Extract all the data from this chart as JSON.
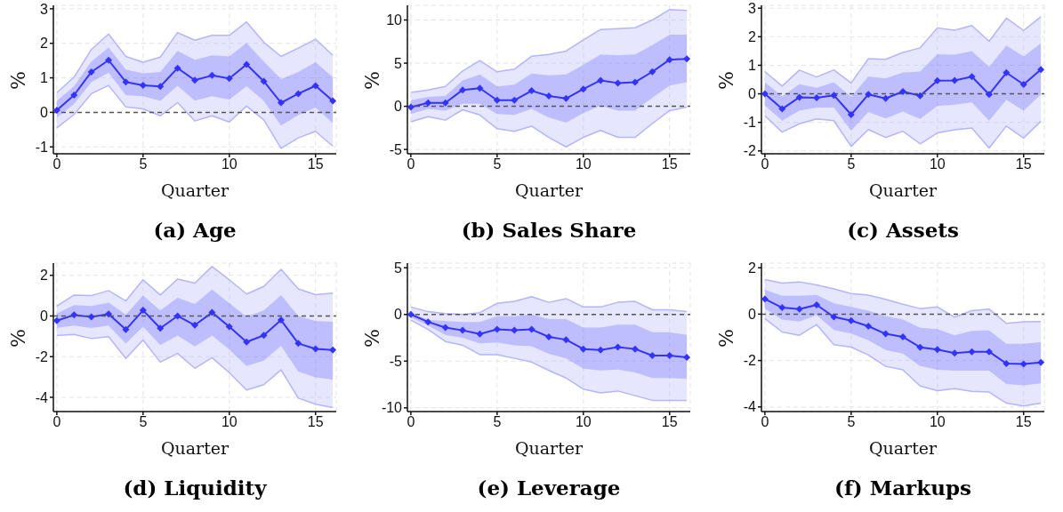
{
  "chart_data": [
    {
      "type": "line",
      "title": "(a) Age",
      "xlabel": "Quarter",
      "ylabel": "%",
      "x": [
        0,
        1,
        2,
        3,
        4,
        5,
        6,
        7,
        8,
        9,
        10,
        11,
        12,
        13,
        14,
        15,
        16
      ],
      "xlim": [
        -0.2,
        16.2
      ],
      "xticks": [
        0,
        5,
        10,
        15
      ],
      "ylim": [
        -1.2,
        3.1
      ],
      "yticks": [
        -1,
        0,
        1,
        2,
        3
      ],
      "grid": true,
      "marker": "diamond",
      "ref_lines": [
        {
          "axis": "y",
          "value": 0,
          "color": "#555555",
          "line_style": "dashed"
        }
      ],
      "series": [
        {
          "color": "#3333ff",
          "values": [
            0.06,
            0.5,
            1.17,
            1.51,
            0.88,
            0.78,
            0.75,
            1.28,
            0.93,
            1.07,
            0.98,
            1.39,
            0.9,
            0.28,
            0.54,
            0.77,
            0.33
          ],
          "lower": [
            -0.16,
            0.24,
            0.87,
            1.15,
            0.5,
            0.47,
            0.33,
            0.77,
            0.34,
            0.47,
            0.37,
            0.76,
            0.33,
            -0.38,
            -0.08,
            0.14,
            -0.31
          ],
          "upper": [
            0.33,
            0.76,
            1.47,
            1.88,
            1.24,
            1.13,
            1.17,
            1.78,
            1.52,
            1.65,
            1.62,
            2.01,
            1.47,
            0.96,
            1.17,
            1.45,
            1.02
          ]
        },
        {
          "type": "line",
          "color": "#b4b4ff",
          "marker": "none",
          "values": [
            0.57,
            1.02,
            1.82,
            2.27,
            1.62,
            1.45,
            1.6,
            2.31,
            2.09,
            2.23,
            2.23,
            2.62,
            2.03,
            1.62,
            1.86,
            2.12,
            1.65
          ],
          "upper": [
            0.57,
            1.02,
            1.82,
            2.27,
            1.62,
            1.45,
            1.6,
            2.31,
            2.09,
            2.23,
            2.23,
            2.62,
            2.03,
            1.62,
            1.86,
            2.12,
            1.65
          ],
          "lower": [
            -0.45,
            -0.06,
            0.54,
            0.78,
            0.16,
            0.1,
            -0.1,
            0.28,
            -0.25,
            -0.1,
            -0.28,
            0.18,
            -0.22,
            -1.04,
            -0.74,
            -0.55,
            -0.98
          ]
        },
        {
          "type": "line",
          "color": "#b4b4ff",
          "marker": "none",
          "values": [
            -0.45,
            -0.06,
            0.54,
            0.78,
            0.16,
            0.1,
            -0.1,
            0.28,
            -0.25,
            -0.1,
            -0.28,
            0.18,
            -0.22,
            -1.04,
            -0.74,
            -0.55,
            -0.98
          ]
        }
      ]
    },
    {
      "type": "line",
      "title": "(b) Sales Share",
      "xlabel": "Quarter",
      "ylabel": "%",
      "x": [
        0,
        1,
        2,
        3,
        4,
        5,
        6,
        7,
        8,
        9,
        10,
        11,
        12,
        13,
        14,
        15,
        16
      ],
      "xlim": [
        -0.2,
        16.2
      ],
      "xticks": [
        0,
        5,
        10,
        15
      ],
      "ylim": [
        -5.5,
        11.7
      ],
      "yticks": [
        -5,
        0,
        5,
        10
      ],
      "grid": true,
      "marker": "diamond",
      "ref_lines": [
        {
          "axis": "y",
          "value": 0,
          "color": "#555555",
          "line_style": "dashed"
        }
      ],
      "series": [
        {
          "color": "#3333ff",
          "values": [
            -0.1,
            0.4,
            0.4,
            1.9,
            2.1,
            0.7,
            0.7,
            1.8,
            1.2,
            0.9,
            2.0,
            3.0,
            2.7,
            2.8,
            4.0,
            5.4,
            5.5
          ],
          "lower": [
            -0.9,
            -0.3,
            -0.5,
            0.3,
            0.3,
            -0.9,
            -1.0,
            -0.3,
            -1.3,
            -1.9,
            -0.8,
            0.1,
            -0.5,
            -0.5,
            1.0,
            2.4,
            2.8
          ],
          "upper": [
            0.7,
            1.1,
            1.2,
            3.0,
            3.7,
            2.3,
            2.5,
            3.8,
            3.6,
            3.7,
            4.8,
            6.0,
            5.9,
            6.0,
            7.1,
            8.3,
            8.3
          ]
        },
        {
          "type": "line",
          "color": "#b4b4ff",
          "marker": "none",
          "values": [
            1.6,
            1.9,
            2.3,
            4.1,
            5.3,
            4.0,
            4.3,
            5.8,
            6.0,
            6.4,
            7.7,
            8.9,
            9.0,
            9.1,
            10.0,
            11.2,
            11.1
          ],
          "upper": [
            1.6,
            1.9,
            2.3,
            4.1,
            5.3,
            4.0,
            4.3,
            5.8,
            6.0,
            6.4,
            7.7,
            8.9,
            9.0,
            9.1,
            10.0,
            11.2,
            11.1
          ],
          "lower": [
            -1.8,
            -1.2,
            -1.6,
            -0.4,
            -1.0,
            -2.6,
            -2.9,
            -2.3,
            -3.6,
            -4.7,
            -3.6,
            -2.8,
            -3.6,
            -3.6,
            -2.0,
            -0.5,
            -0.1
          ]
        },
        {
          "type": "line",
          "color": "#b4b4ff",
          "marker": "none",
          "values": [
            -1.8,
            -1.2,
            -1.6,
            -0.4,
            -1.0,
            -2.6,
            -2.9,
            -2.3,
            -3.6,
            -4.7,
            -3.6,
            -2.8,
            -3.6,
            -3.6,
            -2.0,
            -0.5,
            -0.1
          ]
        }
      ]
    },
    {
      "type": "line",
      "title": "(c) Assets",
      "xlabel": "Quarter",
      "ylabel": "%",
      "x": [
        0,
        1,
        2,
        3,
        4,
        5,
        6,
        7,
        8,
        9,
        10,
        11,
        12,
        13,
        14,
        15,
        16
      ],
      "xlim": [
        -0.2,
        16.2
      ],
      "xticks": [
        0,
        5,
        10,
        15
      ],
      "ylim": [
        -2.1,
        3.1
      ],
      "yticks": [
        -2,
        -1,
        0,
        1,
        2,
        3
      ],
      "grid": true,
      "marker": "diamond",
      "ref_lines": [
        {
          "axis": "y",
          "value": 0,
          "color": "#555555",
          "line_style": "dashed"
        }
      ],
      "series": [
        {
          "color": "#3333ff",
          "values": [
            0,
            -0.53,
            -0.12,
            -0.14,
            -0.05,
            -0.73,
            -0.02,
            -0.16,
            0.08,
            -0.07,
            0.46,
            0.47,
            0.6,
            -0.02,
            0.74,
            0.33,
            0.85
          ],
          "lower": [
            -0.41,
            -0.94,
            -0.59,
            -0.48,
            -0.48,
            -1.29,
            -0.64,
            -0.86,
            -0.62,
            -0.88,
            -0.43,
            -0.38,
            -0.3,
            -0.94,
            -0.21,
            -0.59,
            -0.02
          ],
          "upper": [
            0.41,
            -0.09,
            0.34,
            0.21,
            0.41,
            -0.11,
            0.61,
            0.54,
            0.75,
            0.78,
            1.39,
            1.37,
            1.5,
            0.94,
            1.69,
            1.31,
            1.77
          ]
        },
        {
          "type": "line",
          "color": "#b4b4ff",
          "marker": "none",
          "values": [
            0.78,
            0.27,
            0.83,
            0.59,
            0.84,
            0.38,
            1.23,
            1.21,
            1.45,
            1.61,
            2.31,
            2.23,
            2.39,
            1.84,
            2.65,
            2.22,
            2.7
          ],
          "upper": [
            0.78,
            0.27,
            0.83,
            0.59,
            0.84,
            0.38,
            1.23,
            1.21,
            1.45,
            1.61,
            2.31,
            2.23,
            2.39,
            1.84,
            2.65,
            2.22,
            2.7
          ],
          "lower": [
            -0.77,
            -1.34,
            -1.05,
            -0.88,
            -0.94,
            -1.84,
            -1.25,
            -1.53,
            -1.31,
            -1.75,
            -1.37,
            -1.26,
            -1.2,
            -1.9,
            -1.13,
            -1.55,
            -0.96
          ]
        },
        {
          "type": "line",
          "color": "#b4b4ff",
          "marker": "none",
          "values": [
            -0.77,
            -1.34,
            -1.05,
            -0.88,
            -0.94,
            -1.84,
            -1.25,
            -1.53,
            -1.31,
            -1.75,
            -1.37,
            -1.26,
            -1.2,
            -1.9,
            -1.13,
            -1.55,
            -0.96
          ]
        }
      ]
    },
    {
      "type": "line",
      "title": "(d) Liquidity",
      "xlabel": "Quarter",
      "ylabel": "%",
      "x": [
        0,
        1,
        2,
        3,
        4,
        5,
        6,
        7,
        8,
        9,
        10,
        11,
        12,
        13,
        14,
        15,
        16
      ],
      "xlim": [
        -0.2,
        16.2
      ],
      "xticks": [
        0,
        5,
        10,
        15
      ],
      "ylim": [
        -4.7,
        2.6
      ],
      "yticks": [
        -4,
        -2,
        0,
        2
      ],
      "grid": true,
      "marker": "diamond",
      "ref_lines": [
        {
          "axis": "y",
          "value": 0,
          "color": "#555555",
          "line_style": "dashed"
        }
      ],
      "series": [
        {
          "color": "#3333ff",
          "values": [
            -0.23,
            0.05,
            -0.05,
            0.1,
            -0.67,
            0.28,
            -0.6,
            0.0,
            -0.45,
            0.17,
            -0.53,
            -1.28,
            -0.95,
            -0.2,
            -1.35,
            -1.62,
            -1.67
          ],
          "lower": [
            -0.58,
            -0.47,
            -0.59,
            -0.47,
            -1.36,
            -0.52,
            -1.43,
            -0.96,
            -1.5,
            -0.96,
            -1.65,
            -2.46,
            -2.2,
            -1.47,
            -2.73,
            -3.02,
            -3.13
          ],
          "upper": [
            0.12,
            0.53,
            0.49,
            0.66,
            0.07,
            1.0,
            0.27,
            0.9,
            0.59,
            1.3,
            0.63,
            -0.03,
            0.27,
            1.03,
            0,
            -0.25,
            -0.29
          ]
        },
        {
          "type": "line",
          "color": "#b4b4ff",
          "marker": "none",
          "values": [
            0.49,
            1.03,
            1.0,
            1.25,
            0.74,
            1.78,
            1.03,
            1.81,
            1.62,
            2.43,
            1.78,
            1.08,
            1.45,
            2.29,
            1.33,
            1.05,
            1.12
          ],
          "upper": [
            0.49,
            1.03,
            1.0,
            1.25,
            0.74,
            1.78,
            1.03,
            1.81,
            1.62,
            2.43,
            1.78,
            1.08,
            1.45,
            2.29,
            1.33,
            1.05,
            1.12
          ],
          "lower": [
            -0.96,
            -0.91,
            -1.11,
            -1.02,
            -2.09,
            -1.18,
            -2.27,
            -1.84,
            -2.57,
            -2.05,
            -2.79,
            -3.64,
            -3.38,
            -2.65,
            -4.04,
            -4.34,
            -4.5
          ]
        },
        {
          "type": "line",
          "color": "#b4b4ff",
          "marker": "none",
          "values": [
            -0.96,
            -0.91,
            -1.11,
            -1.02,
            -2.09,
            -1.18,
            -2.27,
            -1.84,
            -2.57,
            -2.05,
            -2.79,
            -3.64,
            -3.38,
            -2.65,
            -4.04,
            -4.34,
            -4.5
          ]
        }
      ]
    },
    {
      "type": "line",
      "title": "(e) Leverage",
      "xlabel": "Quarter",
      "ylabel": "%",
      "x": [
        0,
        1,
        2,
        3,
        4,
        5,
        6,
        7,
        8,
        9,
        10,
        11,
        12,
        13,
        14,
        15,
        16
      ],
      "xlim": [
        -0.2,
        16.2
      ],
      "xticks": [
        0,
        5,
        10,
        15
      ],
      "ylim": [
        -10.4,
        5.5
      ],
      "yticks": [
        -10,
        -5,
        0,
        5
      ],
      "grid": true,
      "marker": "diamond",
      "ref_lines": [
        {
          "axis": "y",
          "value": 0,
          "color": "#555555",
          "line_style": "dashed"
        }
      ],
      "series": [
        {
          "color": "#3333ff",
          "values": [
            0.0,
            -0.8,
            -1.4,
            -1.7,
            -2.1,
            -1.6,
            -1.7,
            -1.6,
            -2.4,
            -2.7,
            -3.7,
            -3.8,
            -3.5,
            -3.7,
            -4.4,
            -4.4,
            -4.6
          ],
          "lower": [
            -0.3,
            -1.2,
            -2.2,
            -2.5,
            -3.1,
            -3.0,
            -3.3,
            -3.4,
            -4.2,
            -4.7,
            -5.8,
            -6.0,
            -5.9,
            -6.2,
            -6.8,
            -6.8,
            -6.9
          ],
          "upper": [
            0.2,
            -0.6,
            -0.7,
            -0.8,
            -0.8,
            -0.2,
            -0.2,
            0.0,
            -0.5,
            -0.5,
            -1.4,
            -1.4,
            -1.1,
            -1.1,
            -1.9,
            -1.9,
            -2.2
          ]
        },
        {
          "type": "line",
          "color": "#b4b4ff",
          "marker": "none",
          "values": [
            0.8,
            0.3,
            0.1,
            0.0,
            0.2,
            1.2,
            1.4,
            1.9,
            1.3,
            1.7,
            0.8,
            0.8,
            1.3,
            1.4,
            0.5,
            0.5,
            0.3
          ],
          "upper": [
            0.8,
            0.3,
            0.1,
            0.0,
            0.2,
            1.2,
            1.4,
            1.9,
            1.3,
            1.7,
            0.8,
            0.8,
            1.3,
            1.4,
            0.5,
            0.5,
            0.3
          ],
          "lower": [
            -0.6,
            -1.6,
            -2.9,
            -3.3,
            -4.3,
            -4.3,
            -4.7,
            -5.1,
            -6.0,
            -6.8,
            -8.0,
            -8.4,
            -8.2,
            -8.7,
            -9.2,
            -9.2,
            -9.2
          ]
        },
        {
          "type": "line",
          "color": "#b4b4ff",
          "marker": "none",
          "values": [
            -0.6,
            -1.6,
            -2.9,
            -3.3,
            -4.3,
            -4.3,
            -4.7,
            -5.1,
            -6.0,
            -6.8,
            -8.0,
            -8.4,
            -8.2,
            -8.7,
            -9.2,
            -9.2,
            -9.2
          ]
        }
      ]
    },
    {
      "type": "line",
      "title": "(f) Markups",
      "xlabel": "Quarter",
      "ylabel": "%",
      "x": [
        0,
        1,
        2,
        3,
        4,
        5,
        6,
        7,
        8,
        9,
        10,
        11,
        12,
        13,
        14,
        15,
        16
      ],
      "xlim": [
        -0.2,
        16.2
      ],
      "xticks": [
        0,
        5,
        10,
        15
      ],
      "ylim": [
        -4.2,
        2.2
      ],
      "yticks": [
        -4,
        -2,
        0,
        2
      ],
      "grid": true,
      "marker": "diamond",
      "ref_lines": [
        {
          "axis": "y",
          "value": 0,
          "color": "#555555",
          "line_style": "dashed"
        }
      ],
      "series": [
        {
          "color": "#3333ff",
          "values": [
            0.65,
            0.28,
            0.22,
            0.4,
            -0.12,
            -0.28,
            -0.52,
            -0.85,
            -0.98,
            -1.43,
            -1.53,
            -1.68,
            -1.62,
            -1.62,
            -2.13,
            -2.15,
            -2.08
          ],
          "lower": [
            0.24,
            -0.23,
            -0.32,
            -0.04,
            -0.68,
            -0.84,
            -1.12,
            -1.55,
            -1.7,
            -2.24,
            -2.4,
            -2.44,
            -2.44,
            -2.44,
            -3.01,
            -3.07,
            -2.98
          ],
          "upper": [
            1.05,
            0.79,
            0.79,
            0.83,
            0.47,
            0.31,
            0.15,
            -0.08,
            -0.23,
            -0.59,
            -0.65,
            -0.91,
            -0.72,
            -0.7,
            -1.28,
            -1.28,
            -1.21
          ]
        },
        {
          "type": "line",
          "color": "#b4b4ff",
          "marker": "none",
          "values": [
            1.49,
            1.34,
            1.39,
            1.26,
            1.09,
            0.89,
            0.82,
            0.64,
            0.43,
            0.24,
            0.31,
            -0.13,
            0.15,
            0.22,
            -0.4,
            -0.33,
            -0.32
          ],
          "upper": [
            1.49,
            1.34,
            1.39,
            1.26,
            1.09,
            0.89,
            0.82,
            0.64,
            0.43,
            0.24,
            0.31,
            -0.13,
            0.15,
            0.22,
            -0.4,
            -0.33,
            -0.32
          ],
          "lower": [
            -0.19,
            -0.77,
            -0.91,
            -0.45,
            -1.32,
            -1.42,
            -1.76,
            -2.25,
            -2.4,
            -3.1,
            -3.3,
            -3.21,
            -3.33,
            -3.36,
            -3.84,
            -3.96,
            -3.84
          ]
        },
        {
          "type": "line",
          "color": "#b4b4ff",
          "marker": "none",
          "values": [
            -0.19,
            -0.77,
            -0.91,
            -0.45,
            -1.32,
            -1.42,
            -1.76,
            -2.25,
            -2.4,
            -3.1,
            -3.3,
            -3.21,
            -3.33,
            -3.36,
            -3.84,
            -3.96,
            -3.84
          ]
        }
      ]
    }
  ]
}
